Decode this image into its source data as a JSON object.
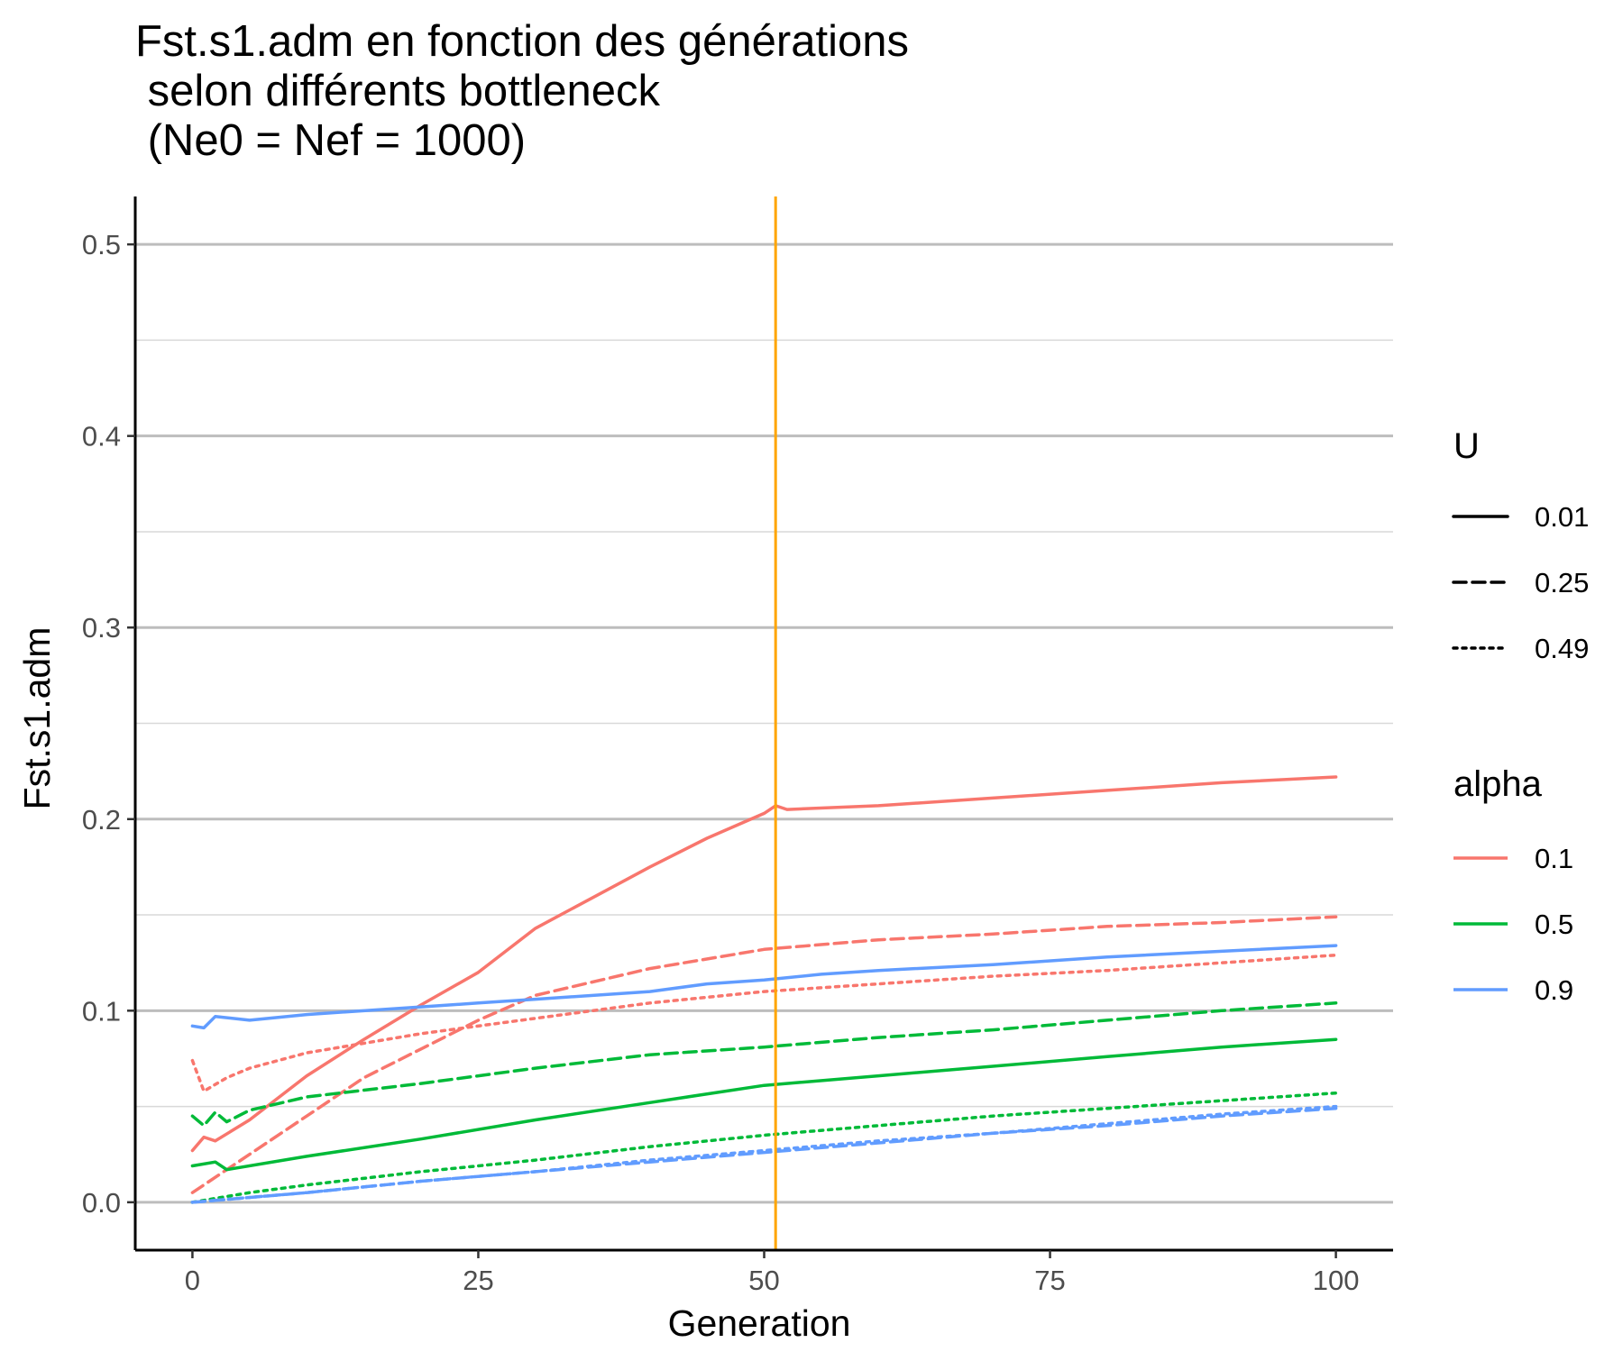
{
  "chart_data": {
    "type": "line",
    "title": [
      "Fst.s1.adm en fonction des générations",
      " selon différents bottleneck",
      " (Ne0 = Nef = 1000)"
    ],
    "xlabel": "Generation",
    "ylabel": "Fst.s1.adm",
    "xlim": [
      -5,
      105
    ],
    "ylim": [
      -0.025,
      0.525
    ],
    "x_ticks": [
      0,
      25,
      50,
      75,
      100
    ],
    "x_tick_labels": [
      "0",
      "25",
      "50",
      "75",
      "100"
    ],
    "y_ticks": [
      0.0,
      0.1,
      0.2,
      0.3,
      0.4,
      0.5
    ],
    "y_tick_labels": [
      "0.0",
      "0.1",
      "0.2",
      "0.3",
      "0.4",
      "0.5"
    ],
    "grid": "horizontal major and minor",
    "vline": {
      "x": 51,
      "color": "#FFA500"
    },
    "legends": {
      "linetype": {
        "title": "U",
        "entries": [
          {
            "label": "0.01",
            "dash": "solid"
          },
          {
            "label": "0.25",
            "dash": "dashed"
          },
          {
            "label": "0.49",
            "dash": "dotted"
          }
        ]
      },
      "color": {
        "title": "alpha",
        "entries": [
          {
            "label": "0.1",
            "color": "#F8766D"
          },
          {
            "label": "0.5",
            "color": "#00BA38"
          },
          {
            "label": "0.9",
            "color": "#619CFF"
          }
        ]
      }
    },
    "series": [
      {
        "alpha": "0.1",
        "U": "0.01",
        "color": "#F8766D",
        "dash": "solid",
        "points": [
          [
            0,
            0.027
          ],
          [
            1,
            0.034
          ],
          [
            2,
            0.032
          ],
          [
            5,
            0.043
          ],
          [
            10,
            0.066
          ],
          [
            15,
            0.085
          ],
          [
            20,
            0.103
          ],
          [
            25,
            0.12
          ],
          [
            30,
            0.143
          ],
          [
            35,
            0.159
          ],
          [
            40,
            0.175
          ],
          [
            45,
            0.19
          ],
          [
            50,
            0.203
          ],
          [
            51,
            0.207
          ],
          [
            52,
            0.205
          ],
          [
            60,
            0.207
          ],
          [
            70,
            0.211
          ],
          [
            80,
            0.215
          ],
          [
            90,
            0.219
          ],
          [
            100,
            0.222
          ]
        ]
      },
      {
        "alpha": "0.1",
        "U": "0.25",
        "color": "#F8766D",
        "dash": "dashed",
        "points": [
          [
            0,
            0.005
          ],
          [
            5,
            0.025
          ],
          [
            10,
            0.045
          ],
          [
            15,
            0.065
          ],
          [
            20,
            0.08
          ],
          [
            25,
            0.095
          ],
          [
            30,
            0.108
          ],
          [
            40,
            0.122
          ],
          [
            50,
            0.132
          ],
          [
            60,
            0.137
          ],
          [
            70,
            0.14
          ],
          [
            80,
            0.144
          ],
          [
            90,
            0.146
          ],
          [
            100,
            0.149
          ]
        ]
      },
      {
        "alpha": "0.1",
        "U": "0.49",
        "color": "#F8766D",
        "dash": "dotted",
        "points": [
          [
            0,
            0.074
          ],
          [
            1,
            0.058
          ],
          [
            3,
            0.065
          ],
          [
            5,
            0.07
          ],
          [
            10,
            0.078
          ],
          [
            20,
            0.088
          ],
          [
            30,
            0.096
          ],
          [
            40,
            0.104
          ],
          [
            50,
            0.11
          ],
          [
            60,
            0.114
          ],
          [
            70,
            0.118
          ],
          [
            80,
            0.121
          ],
          [
            90,
            0.125
          ],
          [
            100,
            0.129
          ]
        ]
      },
      {
        "alpha": "0.5",
        "U": "0.01",
        "color": "#00BA38",
        "dash": "solid",
        "points": [
          [
            0,
            0.019
          ],
          [
            2,
            0.021
          ],
          [
            3,
            0.017
          ],
          [
            10,
            0.024
          ],
          [
            20,
            0.033
          ],
          [
            30,
            0.043
          ],
          [
            40,
            0.052
          ],
          [
            50,
            0.061
          ],
          [
            60,
            0.066
          ],
          [
            70,
            0.071
          ],
          [
            80,
            0.076
          ],
          [
            90,
            0.081
          ],
          [
            100,
            0.085
          ]
        ]
      },
      {
        "alpha": "0.5",
        "U": "0.25",
        "color": "#00BA38",
        "dash": "dashed",
        "points": [
          [
            0,
            0.045
          ],
          [
            1,
            0.04
          ],
          [
            2,
            0.047
          ],
          [
            3,
            0.042
          ],
          [
            5,
            0.048
          ],
          [
            10,
            0.055
          ],
          [
            20,
            0.062
          ],
          [
            30,
            0.07
          ],
          [
            40,
            0.077
          ],
          [
            50,
            0.081
          ],
          [
            60,
            0.086
          ],
          [
            70,
            0.09
          ],
          [
            80,
            0.095
          ],
          [
            90,
            0.1
          ],
          [
            100,
            0.104
          ]
        ]
      },
      {
        "alpha": "0.5",
        "U": "0.49",
        "color": "#00BA38",
        "dash": "dotted",
        "points": [
          [
            0,
            0.0
          ],
          [
            5,
            0.005
          ],
          [
            10,
            0.009
          ],
          [
            20,
            0.016
          ],
          [
            30,
            0.022
          ],
          [
            40,
            0.029
          ],
          [
            50,
            0.035
          ],
          [
            60,
            0.04
          ],
          [
            70,
            0.045
          ],
          [
            80,
            0.049
          ],
          [
            90,
            0.053
          ],
          [
            100,
            0.057
          ]
        ]
      },
      {
        "alpha": "0.9",
        "U": "0.01",
        "color": "#619CFF",
        "dash": "solid",
        "points": [
          [
            0,
            0.092
          ],
          [
            1,
            0.091
          ],
          [
            2,
            0.097
          ],
          [
            5,
            0.095
          ],
          [
            10,
            0.098
          ],
          [
            20,
            0.102
          ],
          [
            25,
            0.104
          ],
          [
            30,
            0.106
          ],
          [
            40,
            0.11
          ],
          [
            45,
            0.114
          ],
          [
            50,
            0.116
          ],
          [
            55,
            0.119
          ],
          [
            60,
            0.121
          ],
          [
            70,
            0.124
          ],
          [
            80,
            0.128
          ],
          [
            90,
            0.131
          ],
          [
            100,
            0.134
          ]
        ]
      },
      {
        "alpha": "0.9",
        "U": "0.25",
        "color": "#619CFF",
        "dash": "dashed",
        "points": [
          [
            0,
            0.0
          ],
          [
            10,
            0.005
          ],
          [
            20,
            0.011
          ],
          [
            30,
            0.016
          ],
          [
            40,
            0.021
          ],
          [
            50,
            0.026
          ],
          [
            60,
            0.031
          ],
          [
            70,
            0.036
          ],
          [
            80,
            0.04
          ],
          [
            90,
            0.045
          ],
          [
            100,
            0.049
          ]
        ]
      },
      {
        "alpha": "0.9",
        "U": "0.49",
        "color": "#619CFF",
        "dash": "dotted",
        "points": [
          [
            0,
            0.0
          ],
          [
            10,
            0.005
          ],
          [
            20,
            0.011
          ],
          [
            30,
            0.016
          ],
          [
            40,
            0.022
          ],
          [
            50,
            0.027
          ],
          [
            60,
            0.032
          ],
          [
            70,
            0.036
          ],
          [
            80,
            0.041
          ],
          [
            90,
            0.046
          ],
          [
            100,
            0.05
          ]
        ]
      }
    ]
  }
}
